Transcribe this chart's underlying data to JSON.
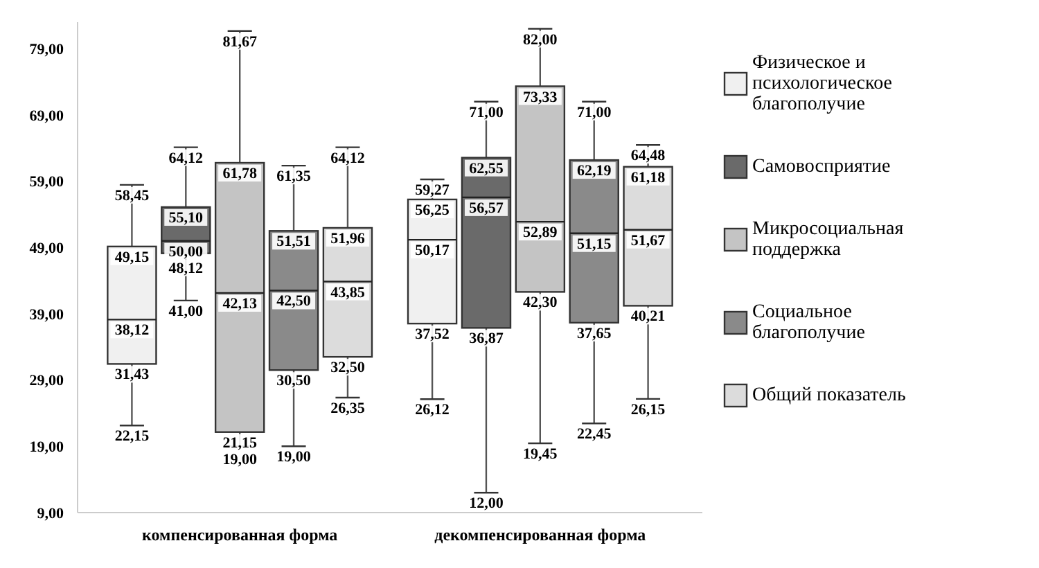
{
  "chart_data": {
    "type": "box",
    "categories": [
      "компенсированная форма",
      "декомпенсированная форма"
    ],
    "ylim": [
      9,
      83
    ],
    "yticks": [
      {
        "value": 9,
        "label": "9,00"
      },
      {
        "value": 19,
        "label": "19,00"
      },
      {
        "value": 29,
        "label": "29,00"
      },
      {
        "value": 39,
        "label": "39,00"
      },
      {
        "value": 49,
        "label": "49,00"
      },
      {
        "value": 59,
        "label": "59,00"
      },
      {
        "value": 69,
        "label": "69,00"
      },
      {
        "value": 79,
        "label": "79,00"
      }
    ],
    "grid": false,
    "legend": "right",
    "series": [
      {
        "name": "Физическое и психологическое благополучие",
        "color": "#f0f0f0",
        "boxes": [
          {
            "low": 22.15,
            "q1": 31.43,
            "median": 38.12,
            "q3": 49.15,
            "high": 58.45
          },
          {
            "low": 26.12,
            "q1": 37.52,
            "median": 50.17,
            "q3": 56.25,
            "high": 59.27
          }
        ],
        "value_labels": [
          [
            "58,45",
            "49,15",
            "38,12",
            "31,43",
            "22,15"
          ],
          [
            "59,27",
            "56,25",
            "50,17",
            "37,52",
            "26,12"
          ]
        ]
      },
      {
        "name": "Самовосприятие",
        "color": "#6a6a6a",
        "boxes": [
          {
            "low": 41.0,
            "q1": 48.12,
            "median": 50.0,
            "q3": 55.1,
            "high": 64.12
          },
          {
            "low": 12.0,
            "q1": 36.87,
            "median": 56.57,
            "q3": 62.55,
            "high": 71.0
          }
        ],
        "value_labels": [
          [
            "64,12",
            "55,10",
            "50,00",
            "48,12",
            "41,00"
          ],
          [
            "71,00",
            "62,55",
            "56,57",
            "36,87",
            "12,00"
          ]
        ]
      },
      {
        "name": "Микросоциальная поддержка",
        "color": "#c4c4c4",
        "boxes": [
          {
            "low": 19.0,
            "q1": 21.15,
            "median": 42.13,
            "q3": 61.78,
            "high": 81.67
          },
          {
            "low": 19.45,
            "q1": 42.3,
            "median": 52.89,
            "q3": 73.33,
            "high": 82.0
          }
        ],
        "value_labels": [
          [
            "81,67",
            "61,78",
            "42,13",
            "21,15",
            "19,00"
          ],
          [
            "82,00",
            "73,33",
            "52,89",
            "42,30",
            "19,45"
          ]
        ]
      },
      {
        "name": "Социальное благополучие",
        "color": "#8a8a8a",
        "boxes": [
          {
            "low": 19.0,
            "q1": 30.5,
            "median": 42.5,
            "q3": 51.51,
            "high": 61.35
          },
          {
            "low": 22.45,
            "q1": 37.65,
            "median": 51.15,
            "q3": 62.19,
            "high": 71.0
          }
        ],
        "value_labels": [
          [
            "61,35",
            "51,51",
            "42,50",
            "30,50",
            "19,00"
          ],
          [
            "71,00",
            "62,19",
            "51,15",
            "37,65",
            "22,45"
          ]
        ]
      },
      {
        "name": "Общий показатель",
        "color": "#dcdcdc",
        "boxes": [
          {
            "low": 26.35,
            "q1": 32.5,
            "median": 43.85,
            "q3": 51.96,
            "high": 64.12
          },
          {
            "low": 26.15,
            "q1": 40.21,
            "median": 51.67,
            "q3": 61.18,
            "high": 64.48
          }
        ],
        "value_labels": [
          [
            "64,12",
            "51,96",
            "43,85",
            "32,50",
            "26,35"
          ],
          [
            "64,48",
            "61,18",
            "51,67",
            "40,21",
            "26,15"
          ]
        ]
      }
    ]
  }
}
